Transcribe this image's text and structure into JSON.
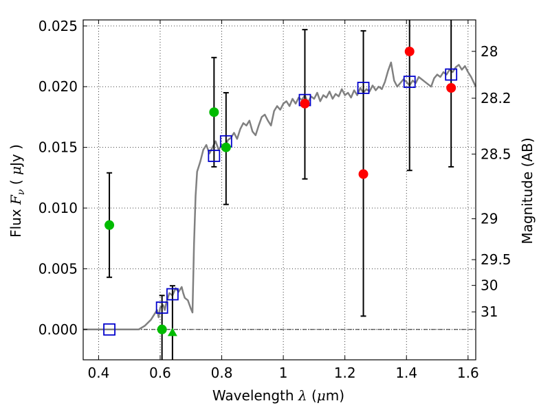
{
  "chart_data": {
    "type": "scatter",
    "xlabel": "Wavelength  λ (μm)",
    "ylabel": "Flux  F_ν  ( μJy )",
    "ylabel_parts": {
      "prefix": "Flux  ",
      "symbol": "F",
      "subscript": "ν",
      "mid": "  ( ",
      "unit_symbol": "μ",
      "unit": "Jy )"
    },
    "xlabel_parts": {
      "prefix": "Wavelength  ",
      "symbol": "λ",
      "mid": " (",
      "unit_symbol": "μ",
      "unit": "m)"
    },
    "y2label": "Magnitude (AB)",
    "xlim": [
      0.35,
      1.625
    ],
    "ylim": [
      -0.0025,
      0.0255
    ],
    "x_ticks": [
      0.4,
      0.6,
      0.8,
      1.0,
      1.2,
      1.4,
      1.6
    ],
    "x_tick_labels": [
      "0.4",
      "0.6",
      "0.8",
      "1",
      "1.2",
      "1.4",
      "1.6"
    ],
    "y_ticks": [
      0.0,
      0.005,
      0.01,
      0.015,
      0.02,
      0.025
    ],
    "y_tick_labels": [
      "0.000",
      "0.005",
      "0.010",
      "0.015",
      "0.020",
      "0.025"
    ],
    "mag_ticks": [
      {
        "label": "28",
        "flux": 0.02291
      },
      {
        "label": "28.2",
        "flux": 0.01905
      },
      {
        "label": "28.5",
        "flux": 0.01445
      },
      {
        "label": "29",
        "flux": 0.00912
      },
      {
        "label": "29.5",
        "flux": 0.00575
      },
      {
        "label": "30",
        "flux": 0.00363
      },
      {
        "label": "31",
        "flux": 0.00145
      }
    ],
    "grid": true,
    "colors": {
      "model": "#808080",
      "synthetic": "#0000cc",
      "green": "#00bb00",
      "red": "#ff0000",
      "errorbar": "#000000"
    },
    "series": [
      {
        "kind": "model-sed",
        "points": [
          [
            0.35,
            0.0
          ],
          [
            0.53,
            0.0
          ],
          [
            0.55,
            0.0003
          ],
          [
            0.57,
            0.0008
          ],
          [
            0.58,
            0.0012
          ],
          [
            0.59,
            0.0016
          ],
          [
            0.595,
            0.001
          ],
          [
            0.6,
            0.0018
          ],
          [
            0.61,
            0.002
          ],
          [
            0.615,
            0.0016
          ],
          [
            0.62,
            0.0022
          ],
          [
            0.63,
            0.003
          ],
          [
            0.64,
            0.0028
          ],
          [
            0.65,
            0.0034
          ],
          [
            0.66,
            0.0031
          ],
          [
            0.67,
            0.0035
          ],
          [
            0.675,
            0.003
          ],
          [
            0.68,
            0.0026
          ],
          [
            0.69,
            0.0024
          ],
          [
            0.7,
            0.0017
          ],
          [
            0.705,
            0.0014
          ],
          [
            0.71,
            0.007
          ],
          [
            0.715,
            0.011
          ],
          [
            0.72,
            0.013
          ],
          [
            0.73,
            0.0138
          ],
          [
            0.74,
            0.0148
          ],
          [
            0.75,
            0.0152
          ],
          [
            0.76,
            0.0145
          ],
          [
            0.77,
            0.015
          ],
          [
            0.78,
            0.0155
          ],
          [
            0.79,
            0.0148
          ],
          [
            0.8,
            0.0152
          ],
          [
            0.81,
            0.015
          ],
          [
            0.82,
            0.0156
          ],
          [
            0.83,
            0.0158
          ],
          [
            0.84,
            0.0162
          ],
          [
            0.85,
            0.0157
          ],
          [
            0.86,
            0.0165
          ],
          [
            0.87,
            0.017
          ],
          [
            0.88,
            0.0168
          ],
          [
            0.89,
            0.0172
          ],
          [
            0.9,
            0.0163
          ],
          [
            0.91,
            0.016
          ],
          [
            0.92,
            0.0168
          ],
          [
            0.93,
            0.0175
          ],
          [
            0.94,
            0.0177
          ],
          [
            0.95,
            0.0172
          ],
          [
            0.96,
            0.0168
          ],
          [
            0.97,
            0.018
          ],
          [
            0.98,
            0.0184
          ],
          [
            0.99,
            0.0181
          ],
          [
            1.0,
            0.0186
          ],
          [
            1.01,
            0.0188
          ],
          [
            1.02,
            0.0184
          ],
          [
            1.03,
            0.019
          ],
          [
            1.04,
            0.0186
          ],
          [
            1.05,
            0.0191
          ],
          [
            1.06,
            0.0189
          ],
          [
            1.07,
            0.0193
          ],
          [
            1.08,
            0.0187
          ],
          [
            1.09,
            0.0192
          ],
          [
            1.1,
            0.019
          ],
          [
            1.11,
            0.0195
          ],
          [
            1.12,
            0.0188
          ],
          [
            1.13,
            0.0193
          ],
          [
            1.14,
            0.0191
          ],
          [
            1.15,
            0.0196
          ],
          [
            1.16,
            0.019
          ],
          [
            1.17,
            0.0194
          ],
          [
            1.18,
            0.0192
          ],
          [
            1.19,
            0.0198
          ],
          [
            1.2,
            0.0193
          ],
          [
            1.21,
            0.0195
          ],
          [
            1.22,
            0.0191
          ],
          [
            1.23,
            0.0197
          ],
          [
            1.24,
            0.0193
          ],
          [
            1.25,
            0.0199
          ],
          [
            1.26,
            0.0195
          ],
          [
            1.27,
            0.0198
          ],
          [
            1.28,
            0.0196
          ],
          [
            1.29,
            0.0201
          ],
          [
            1.3,
            0.0197
          ],
          [
            1.31,
            0.02
          ],
          [
            1.32,
            0.0198
          ],
          [
            1.33,
            0.0204
          ],
          [
            1.34,
            0.0213
          ],
          [
            1.35,
            0.022
          ],
          [
            1.36,
            0.0205
          ],
          [
            1.37,
            0.02
          ],
          [
            1.38,
            0.0203
          ],
          [
            1.39,
            0.0206
          ],
          [
            1.4,
            0.0204
          ],
          [
            1.41,
            0.0201
          ],
          [
            1.42,
            0.0205
          ],
          [
            1.43,
            0.0203
          ],
          [
            1.44,
            0.0208
          ],
          [
            1.45,
            0.0206
          ],
          [
            1.46,
            0.0204
          ],
          [
            1.47,
            0.0202
          ],
          [
            1.48,
            0.02
          ],
          [
            1.49,
            0.0207
          ],
          [
            1.5,
            0.021
          ],
          [
            1.51,
            0.0208
          ],
          [
            1.52,
            0.0212
          ],
          [
            1.53,
            0.021
          ],
          [
            1.54,
            0.0214
          ],
          [
            1.55,
            0.0212
          ],
          [
            1.56,
            0.0216
          ],
          [
            1.57,
            0.0218
          ],
          [
            1.58,
            0.0214
          ],
          [
            1.59,
            0.0217
          ],
          [
            1.6,
            0.0212
          ],
          [
            1.61,
            0.0208
          ],
          [
            1.625,
            0.02
          ]
        ]
      },
      {
        "kind": "synthetic-photometry",
        "marker": "square",
        "points": [
          [
            0.435,
            0.0
          ],
          [
            0.606,
            0.0018
          ],
          [
            0.64,
            0.0029
          ],
          [
            0.775,
            0.0143
          ],
          [
            0.814,
            0.0155
          ],
          [
            1.07,
            0.0189
          ],
          [
            1.26,
            0.0199
          ],
          [
            1.41,
            0.0204
          ],
          [
            1.545,
            0.021
          ]
        ]
      },
      {
        "kind": "observed-green",
        "marker": "circle",
        "points": [
          {
            "x": 0.435,
            "y": 0.0086,
            "err_low": 0.0043,
            "err_high": 0.0129
          },
          {
            "x": 0.606,
            "y": 0.0,
            "err_low": -0.0025,
            "err_high": 0.0028
          },
          {
            "x": 0.775,
            "y": 0.0179,
            "err_low": 0.0134,
            "err_high": 0.0224
          },
          {
            "x": 0.814,
            "y": 0.015,
            "err_low": 0.0103,
            "err_high": 0.0195
          }
        ]
      },
      {
        "kind": "observed-green-limit",
        "marker": "triangle",
        "points": [
          {
            "x": 0.64,
            "y": -0.0002,
            "err_low": -0.0025,
            "err_high": 0.0036
          }
        ]
      },
      {
        "kind": "observed-red",
        "marker": "circle",
        "points": [
          {
            "x": 1.07,
            "y": 0.0186,
            "err_low": 0.0124,
            "err_high": 0.0247
          },
          {
            "x": 1.26,
            "y": 0.0128,
            "err_low": 0.0011,
            "err_high": 0.0246
          },
          {
            "x": 1.41,
            "y": 0.0229,
            "err_low": 0.0131,
            "err_high": 0.0255
          },
          {
            "x": 1.545,
            "y": 0.0199,
            "err_low": 0.0134,
            "err_high": 0.0255
          }
        ]
      }
    ]
  }
}
